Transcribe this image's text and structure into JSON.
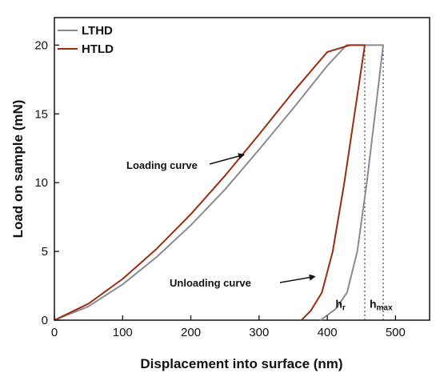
{
  "chart_data": {
    "type": "line",
    "xlabel": "Displacement into surface (nm)",
    "ylabel": "Load on sample (mN)",
    "xlim": [
      0,
      550
    ],
    "ylim": [
      0,
      22
    ],
    "xticks": [
      0,
      100,
      200,
      300,
      400,
      500
    ],
    "yticks": [
      0,
      5,
      10,
      15,
      20
    ],
    "xtick_labels": [
      "0",
      "100",
      "200",
      "300",
      "400",
      "500"
    ],
    "ytick_labels": [
      "0",
      "5",
      "10",
      "15",
      "20"
    ],
    "grid": false,
    "legend_position": "top-left",
    "series": [
      {
        "name": "LTHD",
        "color": "#8a8a94",
        "points": [
          [
            0,
            0
          ],
          [
            50,
            1.0
          ],
          [
            100,
            2.6
          ],
          [
            150,
            4.6
          ],
          [
            200,
            6.9
          ],
          [
            250,
            9.5
          ],
          [
            300,
            12.4
          ],
          [
            350,
            15.4
          ],
          [
            400,
            18.5
          ],
          [
            428,
            20
          ],
          [
            482,
            20
          ],
          [
            470,
            15.0
          ],
          [
            458,
            10.0
          ],
          [
            444,
            5.0
          ],
          [
            429,
            2.0
          ],
          [
            412,
            0.8
          ],
          [
            390,
            0
          ]
        ]
      },
      {
        "name": "HTLD",
        "color": "#9b2c0e",
        "points": [
          [
            0,
            0
          ],
          [
            50,
            1.2
          ],
          [
            100,
            3.0
          ],
          [
            150,
            5.2
          ],
          [
            200,
            7.7
          ],
          [
            250,
            10.5
          ],
          [
            300,
            13.5
          ],
          [
            350,
            16.6
          ],
          [
            400,
            19.5
          ],
          [
            433,
            20
          ],
          [
            455,
            20
          ],
          [
            440,
            15.0
          ],
          [
            425,
            10.0
          ],
          [
            408,
            5.0
          ],
          [
            392,
            2.0
          ],
          [
            376,
            0.7
          ],
          [
            362,
            0
          ]
        ]
      }
    ],
    "annotations": [
      {
        "text": "Loading curve",
        "x": 278,
        "y": 11.8,
        "arrow": true
      },
      {
        "text": "Unloading curve",
        "x": 382,
        "y": 3.0,
        "arrow": true
      }
    ],
    "markers": [
      {
        "label": "h",
        "subscript": "r",
        "x": 412,
        "y": 0.9
      },
      {
        "label": "h",
        "subscript": "max",
        "x": 462,
        "y": 0.9
      }
    ],
    "reference_lines": [
      {
        "x": 455,
        "from": 0,
        "to": 20,
        "style": "dotted"
      },
      {
        "x": 482,
        "from": 0,
        "to": 20,
        "style": "dotted"
      }
    ]
  }
}
